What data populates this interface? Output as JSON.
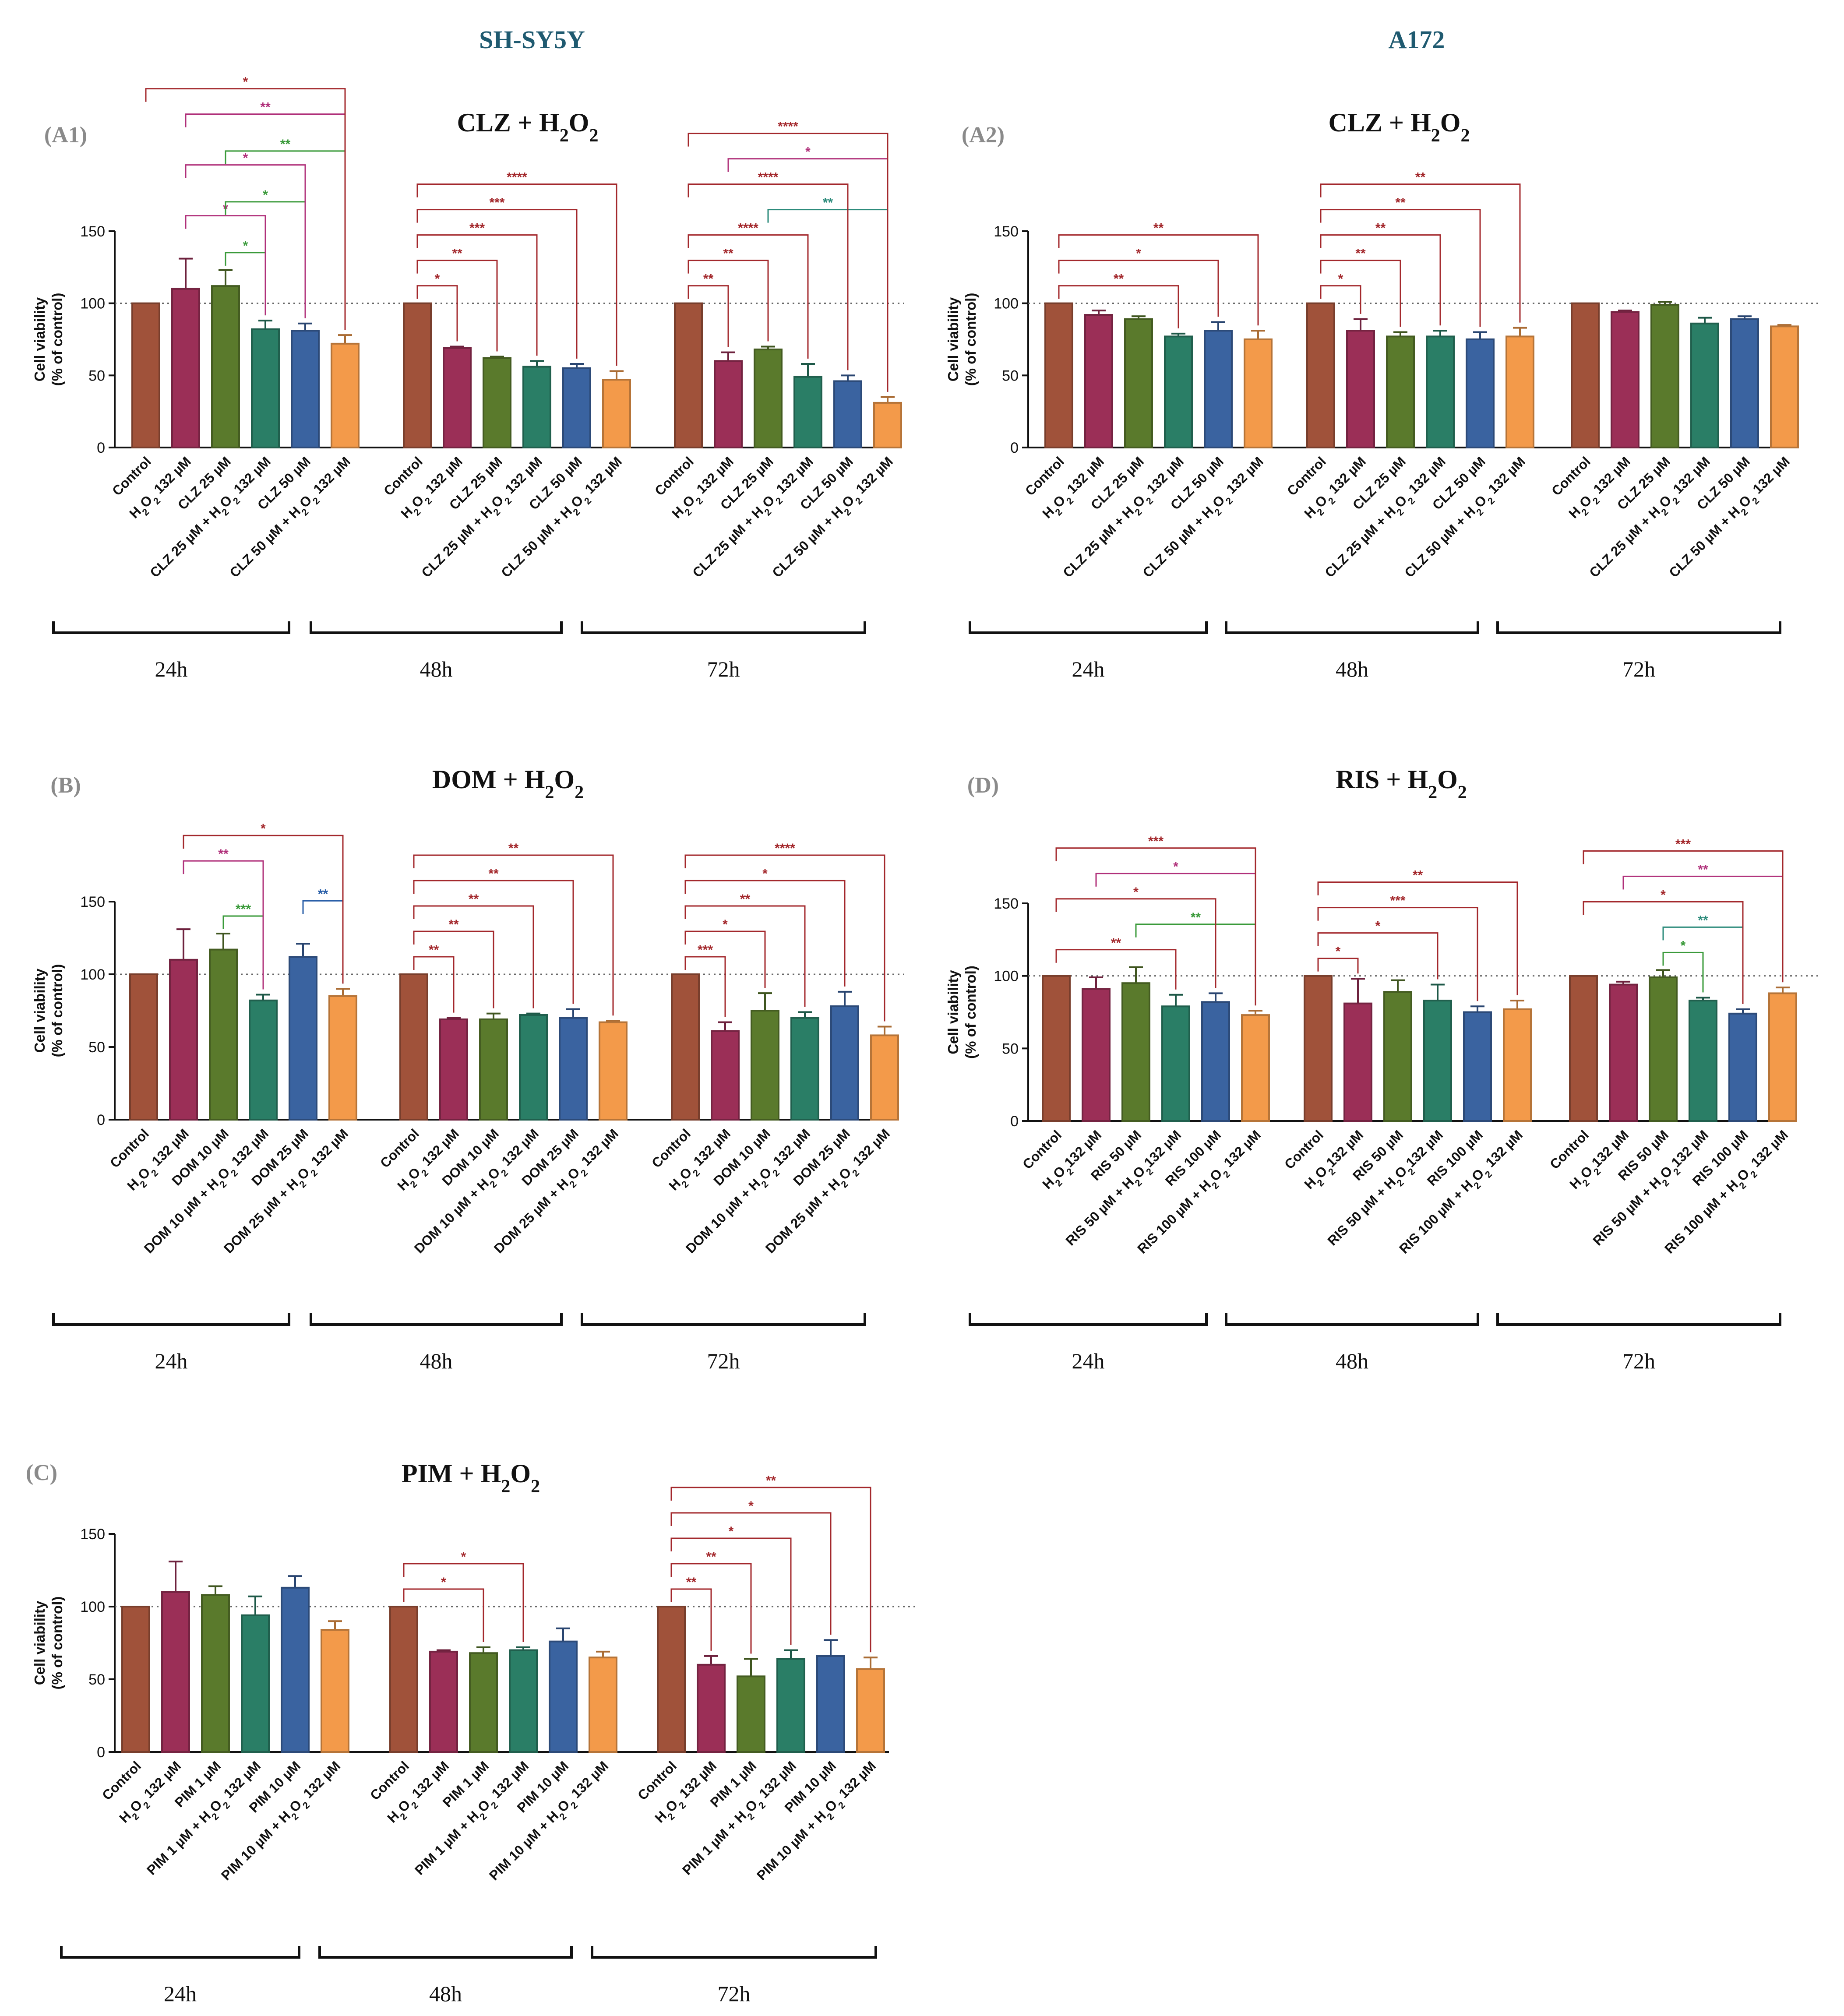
{
  "columns": [
    "SH-SY5Y",
    "A172"
  ],
  "colors": {
    "column_header": "#1f5a70",
    "panel_tag": "#8a8a8a",
    "control": "#a0523a",
    "h2o2": "#9b2f57",
    "drug": "#5a7a2c",
    "drug_h2o2": "#2a7e66",
    "drug_high": "#3a63a0",
    "drug_high_h2o2": "#f39a4a",
    "sig_red": "#a3282c",
    "sig_magenta": "#b0307a",
    "sig_green": "#3a9a3a",
    "sig_teal": "#2a8a7a",
    "sig_blue": "#2a5fa8"
  },
  "chart_data": [
    {
      "id": "A1",
      "tag": "(A1)",
      "type": "bar",
      "title": "CLZ + H2O2",
      "title_drug": "CLZ",
      "ylabel": [
        "Cell viability",
        "(% of control)"
      ],
      "ylim": [
        0,
        150
      ],
      "yticks": [
        0,
        50,
        100,
        150
      ],
      "reference_line": 100,
      "categories": [
        "Control",
        "H2O2 132 µM",
        "CLZ 25 µM",
        "CLZ 25 µM + H2O2 132 µM",
        "CLZ 50 µM",
        "CLZ 50 µM + H2O2 132 µM"
      ],
      "groups": [
        {
          "label": "24h",
          "values": [
            100,
            110,
            112,
            82,
            81,
            72
          ],
          "errors": [
            0,
            21,
            11,
            6,
            5,
            6
          ]
        },
        {
          "label": "48h",
          "values": [
            100,
            69,
            62,
            56,
            55,
            47
          ],
          "errors": [
            0,
            1,
            1,
            4,
            3,
            6
          ]
        },
        {
          "label": "72h",
          "values": [
            100,
            60,
            68,
            49,
            46,
            31
          ],
          "errors": [
            0,
            6,
            2,
            9,
            4,
            4
          ]
        }
      ],
      "significance": [
        {
          "g": 0,
          "from": 0,
          "to": 5,
          "label": "*",
          "color": "sig_red"
        },
        {
          "g": 0,
          "from": 1,
          "to": 5,
          "label": "**",
          "color": "sig_magenta"
        },
        {
          "g": 0,
          "from": 1,
          "to": 4,
          "label": "*",
          "color": "sig_magenta"
        },
        {
          "g": 0,
          "from": 1,
          "to": 3,
          "label": "*",
          "color": "sig_magenta"
        },
        {
          "g": 0,
          "from": 2,
          "to": 5,
          "label": "**",
          "color": "sig_green"
        },
        {
          "g": 0,
          "from": 2,
          "to": 4,
          "label": "*",
          "color": "sig_green"
        },
        {
          "g": 0,
          "from": 2,
          "to": 3,
          "label": "*",
          "color": "sig_green"
        },
        {
          "g": 1,
          "from": 0,
          "to": 5,
          "label": "****",
          "color": "sig_red"
        },
        {
          "g": 1,
          "from": 0,
          "to": 4,
          "label": "***",
          "color": "sig_red"
        },
        {
          "g": 1,
          "from": 0,
          "to": 3,
          "label": "***",
          "color": "sig_red"
        },
        {
          "g": 1,
          "from": 0,
          "to": 2,
          "label": "**",
          "color": "sig_red"
        },
        {
          "g": 1,
          "from": 0,
          "to": 1,
          "label": "*",
          "color": "sig_red"
        },
        {
          "g": 2,
          "from": 0,
          "to": 5,
          "label": "****",
          "color": "sig_red"
        },
        {
          "g": 2,
          "from": 0,
          "to": 4,
          "label": "****",
          "color": "sig_red"
        },
        {
          "g": 2,
          "from": 0,
          "to": 3,
          "label": "****",
          "color": "sig_red"
        },
        {
          "g": 2,
          "from": 0,
          "to": 2,
          "label": "**",
          "color": "sig_red"
        },
        {
          "g": 2,
          "from": 0,
          "to": 1,
          "label": "**",
          "color": "sig_red"
        },
        {
          "g": 2,
          "from": 1,
          "to": 5,
          "label": "*",
          "color": "sig_magenta"
        },
        {
          "g": 2,
          "from": 2,
          "to": 5,
          "label": "**",
          "color": "sig_teal"
        }
      ]
    },
    {
      "id": "A2",
      "tag": "(A2)",
      "type": "bar",
      "title": "CLZ + H2O2",
      "title_drug": "CLZ",
      "ylabel": [
        "Cell viability",
        "(% of control)"
      ],
      "ylim": [
        0,
        150
      ],
      "yticks": [
        0,
        50,
        100,
        150
      ],
      "reference_line": 100,
      "categories": [
        "Control",
        "H2O2 132 µM",
        "CLZ 25 µM",
        "CLZ 25 µM + H2O2 132 µM",
        "CLZ 50 µM",
        "CLZ 50 µM + H2O2 132 µM"
      ],
      "groups": [
        {
          "label": "24h",
          "values": [
            100,
            92,
            89,
            77,
            81,
            75
          ],
          "errors": [
            0,
            3,
            2,
            2,
            6,
            6
          ]
        },
        {
          "label": "48h",
          "values": [
            100,
            81,
            77,
            77,
            75,
            77
          ],
          "errors": [
            0,
            8,
            3,
            4,
            5,
            6
          ]
        },
        {
          "label": "72h",
          "values": [
            100,
            94,
            99,
            86,
            89,
            84
          ],
          "errors": [
            0,
            1,
            2,
            4,
            2,
            1
          ]
        }
      ],
      "significance": [
        {
          "g": 0,
          "from": 0,
          "to": 5,
          "label": "**",
          "color": "sig_red"
        },
        {
          "g": 0,
          "from": 0,
          "to": 4,
          "label": "*",
          "color": "sig_red"
        },
        {
          "g": 0,
          "from": 0,
          "to": 3,
          "label": "**",
          "color": "sig_red"
        },
        {
          "g": 1,
          "from": 0,
          "to": 5,
          "label": "**",
          "color": "sig_red"
        },
        {
          "g": 1,
          "from": 0,
          "to": 4,
          "label": "**",
          "color": "sig_red"
        },
        {
          "g": 1,
          "from": 0,
          "to": 3,
          "label": "**",
          "color": "sig_red"
        },
        {
          "g": 1,
          "from": 0,
          "to": 2,
          "label": "**",
          "color": "sig_red"
        },
        {
          "g": 1,
          "from": 0,
          "to": 1,
          "label": "*",
          "color": "sig_red"
        }
      ]
    },
    {
      "id": "B",
      "tag": "(B)",
      "type": "bar",
      "title": "DOM + H2O2",
      "title_drug": "DOM",
      "ylabel": [
        "Cell viability",
        "(% of control)"
      ],
      "ylim": [
        0,
        150
      ],
      "yticks": [
        0,
        50,
        100,
        150
      ],
      "reference_line": 100,
      "categories": [
        "Control",
        "H2O2 132 µM",
        "DOM 10 µM",
        "DOM 10 µM + H2O2 132 µM",
        "DOM 25 µM",
        "DOM 25 µM + H2O2 132 µM"
      ],
      "groups": [
        {
          "label": "24h",
          "values": [
            100,
            110,
            117,
            82,
            112,
            85
          ],
          "errors": [
            0,
            21,
            11,
            4,
            9,
            5
          ]
        },
        {
          "label": "48h",
          "values": [
            100,
            69,
            69,
            72,
            70,
            67
          ],
          "errors": [
            0,
            1,
            4,
            1,
            6,
            1
          ]
        },
        {
          "label": "72h",
          "values": [
            100,
            61,
            75,
            70,
            78,
            58
          ],
          "errors": [
            0,
            6,
            12,
            4,
            10,
            6
          ]
        }
      ],
      "significance": [
        {
          "g": 0,
          "from": 1,
          "to": 5,
          "label": "*",
          "color": "sig_red"
        },
        {
          "g": 0,
          "from": 1,
          "to": 3,
          "label": "**",
          "color": "sig_magenta"
        },
        {
          "g": 0,
          "from": 2,
          "to": 3,
          "label": "***",
          "color": "sig_green"
        },
        {
          "g": 0,
          "from": 4,
          "to": 5,
          "label": "**",
          "color": "sig_blue"
        },
        {
          "g": 1,
          "from": 0,
          "to": 5,
          "label": "**",
          "color": "sig_red"
        },
        {
          "g": 1,
          "from": 0,
          "to": 4,
          "label": "**",
          "color": "sig_red"
        },
        {
          "g": 1,
          "from": 0,
          "to": 3,
          "label": "**",
          "color": "sig_red"
        },
        {
          "g": 1,
          "from": 0,
          "to": 2,
          "label": "**",
          "color": "sig_red"
        },
        {
          "g": 1,
          "from": 0,
          "to": 1,
          "label": "**",
          "color": "sig_red"
        },
        {
          "g": 2,
          "from": 0,
          "to": 5,
          "label": "****",
          "color": "sig_red"
        },
        {
          "g": 2,
          "from": 0,
          "to": 4,
          "label": "*",
          "color": "sig_red"
        },
        {
          "g": 2,
          "from": 0,
          "to": 3,
          "label": "**",
          "color": "sig_red"
        },
        {
          "g": 2,
          "from": 0,
          "to": 2,
          "label": "*",
          "color": "sig_red"
        },
        {
          "g": 2,
          "from": 0,
          "to": 1,
          "label": "***",
          "color": "sig_red"
        }
      ]
    },
    {
      "id": "D",
      "tag": "(D)",
      "type": "bar",
      "title": "RIS + H2O2",
      "title_drug": "RIS",
      "ylabel": [
        "Cell viability",
        "(% of control)"
      ],
      "ylim": [
        0,
        150
      ],
      "yticks": [
        0,
        50,
        100,
        150
      ],
      "reference_line": 100,
      "categories": [
        "Control",
        "H2O2132 µM",
        "RIS 50 µM",
        "RIS 50 µM + H2O2132 µM",
        "RIS 100 µM",
        "RIS 100 µM + H2O2 132 µM"
      ],
      "groups": [
        {
          "label": "24h",
          "values": [
            100,
            91,
            95,
            79,
            82,
            73
          ],
          "errors": [
            0,
            8,
            11,
            8,
            6,
            3
          ]
        },
        {
          "label": "48h",
          "values": [
            100,
            81,
            89,
            83,
            75,
            77
          ],
          "errors": [
            0,
            17,
            8,
            11,
            4,
            6
          ]
        },
        {
          "label": "72h",
          "values": [
            100,
            94,
            99,
            83,
            74,
            88
          ],
          "errors": [
            0,
            2,
            5,
            2,
            3,
            4
          ]
        }
      ],
      "significance": [
        {
          "g": 0,
          "from": 0,
          "to": 5,
          "label": "***",
          "color": "sig_red"
        },
        {
          "g": 0,
          "from": 0,
          "to": 4,
          "label": "*",
          "color": "sig_red"
        },
        {
          "g": 0,
          "from": 0,
          "to": 3,
          "label": "**",
          "color": "sig_red"
        },
        {
          "g": 0,
          "from": 1,
          "to": 5,
          "label": "*",
          "color": "sig_magenta"
        },
        {
          "g": 0,
          "from": 2,
          "to": 5,
          "label": "**",
          "color": "sig_green"
        },
        {
          "g": 1,
          "from": 0,
          "to": 5,
          "label": "**",
          "color": "sig_red"
        },
        {
          "g": 1,
          "from": 0,
          "to": 4,
          "label": "***",
          "color": "sig_red"
        },
        {
          "g": 1,
          "from": 0,
          "to": 3,
          "label": "*",
          "color": "sig_red"
        },
        {
          "g": 1,
          "from": 0,
          "to": 1,
          "label": "*",
          "color": "sig_red"
        },
        {
          "g": 2,
          "from": 0,
          "to": 5,
          "label": "***",
          "color": "sig_red"
        },
        {
          "g": 2,
          "from": 0,
          "to": 4,
          "label": "*",
          "color": "sig_red"
        },
        {
          "g": 2,
          "from": 1,
          "to": 5,
          "label": "**",
          "color": "sig_magenta"
        },
        {
          "g": 2,
          "from": 2,
          "to": 4,
          "label": "**",
          "color": "sig_teal"
        },
        {
          "g": 2,
          "from": 2,
          "to": 3,
          "label": "*",
          "color": "sig_green"
        }
      ]
    },
    {
      "id": "C",
      "tag": "(C)",
      "type": "bar",
      "title": "PIM + H2O2",
      "title_drug": "PIM",
      "ylabel": [
        "Cell viability",
        "(% of control)"
      ],
      "ylim": [
        0,
        150
      ],
      "yticks": [
        0,
        50,
        100,
        150
      ],
      "reference_line": 100,
      "categories": [
        "Control",
        "H2O2 132 µM",
        "PIM 1 µM",
        "PIM 1 µM + H2O2 132 µM",
        "PIM 10 µM",
        "PIM 10 µM + H2O2 132 µM"
      ],
      "groups": [
        {
          "label": "24h",
          "values": [
            100,
            110,
            108,
            94,
            113,
            84
          ],
          "errors": [
            0,
            21,
            6,
            13,
            8,
            6
          ]
        },
        {
          "label": "48h",
          "values": [
            100,
            69,
            68,
            70,
            76,
            65
          ],
          "errors": [
            0,
            1,
            4,
            2,
            9,
            4
          ]
        },
        {
          "label": "72h",
          "values": [
            100,
            60,
            52,
            64,
            66,
            57
          ],
          "errors": [
            0,
            6,
            12,
            6,
            11,
            8
          ]
        }
      ],
      "significance": [
        {
          "g": 1,
          "from": 0,
          "to": 3,
          "label": "*",
          "color": "sig_red"
        },
        {
          "g": 1,
          "from": 0,
          "to": 2,
          "label": "*",
          "color": "sig_red"
        },
        {
          "g": 2,
          "from": 0,
          "to": 5,
          "label": "**",
          "color": "sig_red"
        },
        {
          "g": 2,
          "from": 0,
          "to": 4,
          "label": "*",
          "color": "sig_red"
        },
        {
          "g": 2,
          "from": 0,
          "to": 3,
          "label": "*",
          "color": "sig_red"
        },
        {
          "g": 2,
          "from": 0,
          "to": 2,
          "label": "**",
          "color": "sig_red"
        },
        {
          "g": 2,
          "from": 0,
          "to": 1,
          "label": "**",
          "color": "sig_red"
        }
      ]
    }
  ]
}
